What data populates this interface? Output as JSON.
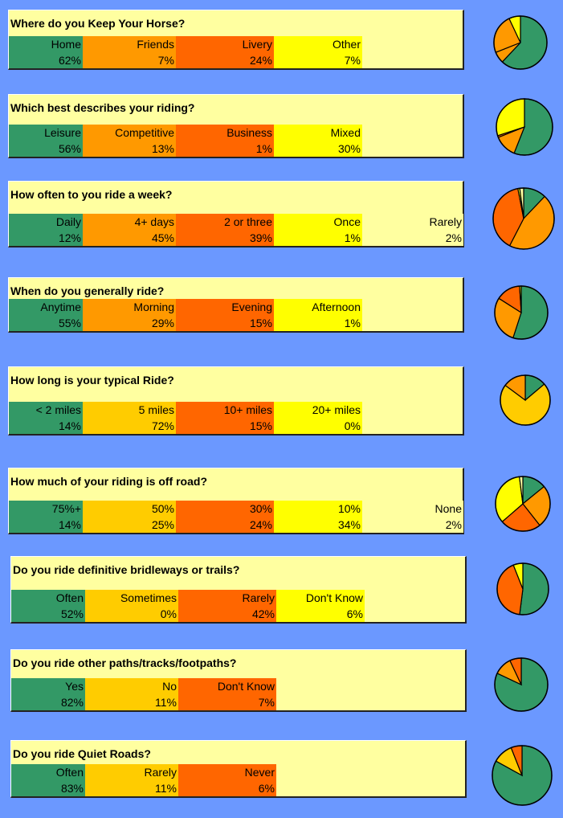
{
  "colors": [
    "#339966",
    "#ff9900",
    "#ff6600",
    "#ffff00",
    "#ffffa0"
  ],
  "questions": [
    {
      "title": "Where do you Keep Your Horse?",
      "cells": [
        {
          "label": "Home",
          "pct": "62%",
          "color": "#339966"
        },
        {
          "label": "Friends",
          "pct": "7%",
          "color": "#ff9900"
        },
        {
          "label": "Livery",
          "pct": "24%",
          "color": "#ff6600"
        },
        {
          "label": "Other",
          "pct": "7%",
          "color": "#ffff00"
        }
      ]
    },
    {
      "title": "Which best describes your riding?",
      "cells": [
        {
          "label": "Leisure",
          "pct": "56%",
          "color": "#339966"
        },
        {
          "label": "Competitive",
          "pct": "13%",
          "color": "#ff9900"
        },
        {
          "label": "Business",
          "pct": "1%",
          "color": "#ff6600"
        },
        {
          "label": "Mixed",
          "pct": "30%",
          "color": "#ffff00"
        }
      ]
    },
    {
      "title": "How often to you ride a week?",
      "cells": [
        {
          "label": "Daily",
          "pct": "12%",
          "color": "#339966"
        },
        {
          "label": "4+ days",
          "pct": "45%",
          "color": "#ff9900"
        },
        {
          "label": "2 or three",
          "pct": "39%",
          "color": "#ff6600"
        },
        {
          "label": "Once",
          "pct": "1%",
          "color": "#ffff00"
        },
        {
          "label": "Rarely",
          "pct": "2%",
          "color": "#ffffa0"
        }
      ]
    },
    {
      "title": "When do you generally ride?",
      "cells": [
        {
          "label": "Anytime",
          "pct": "55%",
          "color": "#339966"
        },
        {
          "label": "Morning",
          "pct": "29%",
          "color": "#ff9900"
        },
        {
          "label": "Evening",
          "pct": "15%",
          "color": "#ff6600"
        },
        {
          "label": "Afternoon",
          "pct": "1%",
          "color": "#ffff00"
        }
      ]
    },
    {
      "title": "How long is your typical Ride?",
      "cells": [
        {
          "label": "< 2 miles",
          "pct": "14%",
          "color": "#339966"
        },
        {
          "label": "5 miles",
          "pct": "72%",
          "color": "#ffcc00"
        },
        {
          "label": "10+ miles",
          "pct": "15%",
          "color": "#ff6600"
        },
        {
          "label": "20+ miles",
          "pct": "0%",
          "color": "#ffff00"
        }
      ]
    },
    {
      "title": "How much of your riding is off road?",
      "cells": [
        {
          "label": "75%+",
          "pct": "14%",
          "color": "#339966"
        },
        {
          "label": "50%",
          "pct": "25%",
          "color": "#ffcc00"
        },
        {
          "label": "30%",
          "pct": "24%",
          "color": "#ff6600"
        },
        {
          "label": "10%",
          "pct": "34%",
          "color": "#ffff00"
        },
        {
          "label": "None",
          "pct": "2%",
          "color": "#ffffa0"
        }
      ]
    },
    {
      "title": "Do you ride definitive bridleways or trails?",
      "cells": [
        {
          "label": "Often",
          "pct": "52%",
          "color": "#339966"
        },
        {
          "label": "Sometimes",
          "pct": "0%",
          "color": "#ffcc00"
        },
        {
          "label": "Rarely",
          "pct": "42%",
          "color": "#ff6600"
        },
        {
          "label": "Don't Know",
          "pct": "6%",
          "color": "#ffff00"
        }
      ]
    },
    {
      "title": "Do you ride other paths/tracks/footpaths?",
      "cells": [
        {
          "label": "Yes",
          "pct": "82%",
          "color": "#339966"
        },
        {
          "label": "No",
          "pct": "11%",
          "color": "#ffcc00"
        },
        {
          "label": "Don't Know",
          "pct": "7%",
          "color": "#ff6600"
        }
      ]
    },
    {
      "title": "Do you ride Quiet Roads?",
      "cells": [
        {
          "label": "Often",
          "pct": "83%",
          "color": "#339966"
        },
        {
          "label": "Rarely",
          "pct": "11%",
          "color": "#ffcc00"
        },
        {
          "label": "Never",
          "pct": "6%",
          "color": "#ff6600"
        }
      ]
    }
  ],
  "chart_data": [
    {
      "type": "pie",
      "title": "Where do you Keep Your Horse?",
      "categories": [
        "Home",
        "Friends",
        "Livery",
        "Other"
      ],
      "values": [
        62,
        7,
        24,
        7
      ],
      "colors": [
        "#339966",
        "#ff9900",
        "#ff9900",
        "#ffff00"
      ]
    },
    {
      "type": "pie",
      "title": "Which best describes your riding?",
      "categories": [
        "Leisure",
        "Competitive",
        "Business",
        "Mixed"
      ],
      "values": [
        56,
        13,
        1,
        30
      ],
      "colors": [
        "#339966",
        "#ff9900",
        "#ff6600",
        "#ffff00"
      ]
    },
    {
      "type": "pie",
      "title": "How often to you ride a week?",
      "categories": [
        "Daily",
        "4+ days",
        "2 or three",
        "Once",
        "Rarely"
      ],
      "values": [
        12,
        45,
        39,
        1,
        2
      ],
      "colors": [
        "#339966",
        "#ff9900",
        "#ff6600",
        "#ffff00",
        "#ffffa0"
      ]
    },
    {
      "type": "pie",
      "title": "When do you generally ride?",
      "categories": [
        "Anytime",
        "Morning",
        "Evening",
        "Afternoon"
      ],
      "values": [
        55,
        29,
        15,
        1
      ],
      "colors": [
        "#339966",
        "#ff9900",
        "#ff6600",
        "#ffff00"
      ]
    },
    {
      "type": "pie",
      "title": "How long is your typical Ride?",
      "categories": [
        "< 2 miles",
        "5 miles",
        "10+ miles",
        "20+ miles"
      ],
      "values": [
        14,
        72,
        15,
        0
      ],
      "colors": [
        "#339966",
        "#ffcc00",
        "#ff9900",
        "#ffff00"
      ]
    },
    {
      "type": "pie",
      "title": "How much of your riding is off road?",
      "categories": [
        "75%+",
        "50%",
        "30%",
        "10%",
        "None"
      ],
      "values": [
        14,
        25,
        24,
        34,
        2
      ],
      "colors": [
        "#339966",
        "#ff9900",
        "#ff6600",
        "#ffff00",
        "#ffffa0"
      ]
    },
    {
      "type": "pie",
      "title": "Do you ride definitive bridleways or trails?",
      "categories": [
        "Often",
        "Sometimes",
        "Rarely",
        "Don't Know"
      ],
      "values": [
        52,
        0,
        42,
        6
      ],
      "colors": [
        "#339966",
        "#ffcc00",
        "#ff6600",
        "#ffff00"
      ]
    },
    {
      "type": "pie",
      "title": "Do you ride other paths/tracks/footpaths?",
      "categories": [
        "Yes",
        "No",
        "Don't Know"
      ],
      "values": [
        82,
        11,
        7
      ],
      "colors": [
        "#339966",
        "#ff9900",
        "#ff6600"
      ]
    },
    {
      "type": "pie",
      "title": "Do you ride Quiet Roads?",
      "categories": [
        "Often",
        "Rarely",
        "Never"
      ],
      "values": [
        83,
        11,
        6
      ],
      "colors": [
        "#339966",
        "#ffcc00",
        "#ff6600"
      ]
    }
  ]
}
